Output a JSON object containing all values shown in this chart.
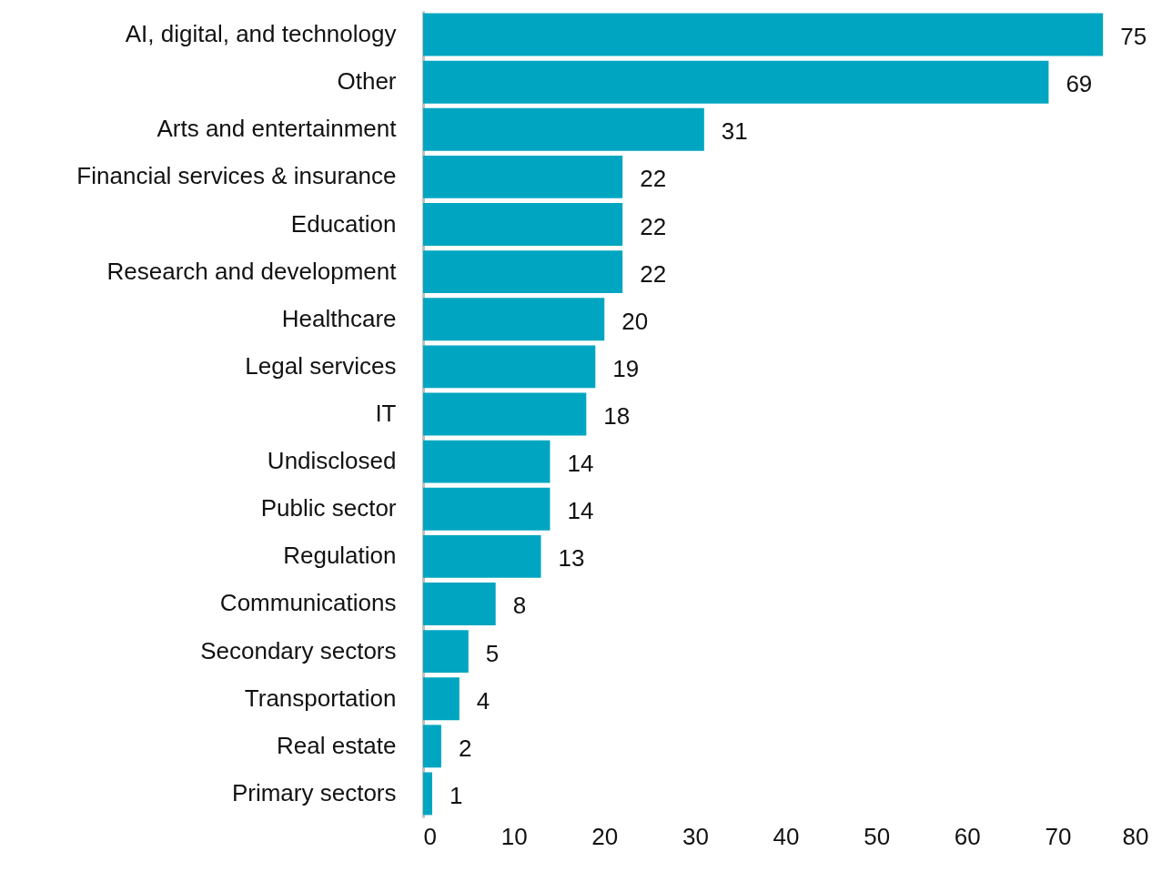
{
  "chart_data": {
    "type": "bar",
    "orientation": "horizontal",
    "categories": [
      "AI, digital, and technology",
      "Other",
      "Arts and entertainment",
      "Financial services & insurance",
      "Education",
      "Research and development",
      "Healthcare",
      "Legal services",
      "IT",
      "Undisclosed",
      "Public sector",
      "Regulation",
      "Communications",
      "Secondary sectors",
      "Transportation",
      "Real estate",
      "Primary sectors"
    ],
    "values": [
      75,
      69,
      31,
      22,
      22,
      22,
      20,
      19,
      18,
      14,
      14,
      13,
      8,
      5,
      4,
      2,
      1
    ],
    "color": "#00a6c1",
    "xlim": [
      0,
      80
    ],
    "xticks": [
      0,
      10,
      20,
      30,
      40,
      50,
      60,
      70,
      80
    ],
    "data_labels": true
  }
}
